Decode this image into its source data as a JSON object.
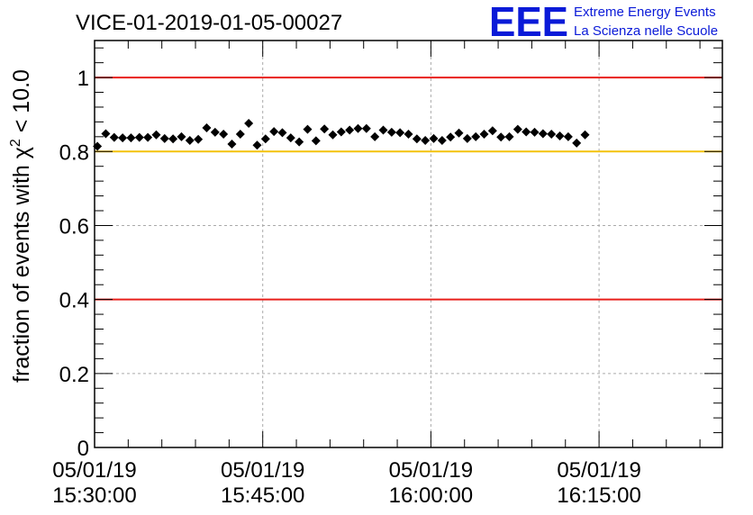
{
  "chart_data": {
    "type": "scatter",
    "title": "VICE-01-2019-01-05-00027",
    "ylabel": {
      "prefix": "fraction of events with ",
      "chi_symbol": "χ",
      "superscript": "2",
      "suffix": " < 10.0"
    },
    "xlabel": "",
    "ylim": [
      0,
      1.1
    ],
    "y_ticks": [
      {
        "value": 0,
        "label": "0"
      },
      {
        "value": 0.2,
        "label": "0.2"
      },
      {
        "value": 0.4,
        "label": "0.4"
      },
      {
        "value": 0.6,
        "label": "0.6"
      },
      {
        "value": 0.8,
        "label": "0.8"
      },
      {
        "value": 1,
        "label": "1"
      }
    ],
    "xlim_minutes": [
      0,
      56
    ],
    "x_ticks": [
      {
        "minute": 0,
        "date": "05/01/19",
        "time": "15:30:00"
      },
      {
        "minute": 15,
        "date": "05/01/19",
        "time": "15:45:00"
      },
      {
        "minute": 30,
        "date": "05/01/19",
        "time": "16:00:00"
      },
      {
        "minute": 45,
        "date": "05/01/19",
        "time": "16:15:00"
      }
    ],
    "reference_lines": [
      {
        "name": "upper-limit",
        "y": 1.0,
        "color": "#e8201c"
      },
      {
        "name": "warning-level",
        "y": 0.8,
        "color": "#f4c20d"
      },
      {
        "name": "lower-limit",
        "y": 0.4,
        "color": "#e8201c"
      }
    ],
    "series": [
      {
        "name": "fraction",
        "x_start_minute": 0.25,
        "x_step_minutes": 0.75,
        "values": [
          0.814,
          0.848,
          0.838,
          0.837,
          0.837,
          0.838,
          0.838,
          0.845,
          0.835,
          0.834,
          0.84,
          0.83,
          0.833,
          0.864,
          0.852,
          0.847,
          0.82,
          0.847,
          0.876,
          0.817,
          0.834,
          0.854,
          0.851,
          0.837,
          0.826,
          0.86,
          0.829,
          0.861,
          0.845,
          0.853,
          0.858,
          0.862,
          0.862,
          0.84,
          0.858,
          0.852,
          0.851,
          0.847,
          0.834,
          0.83,
          0.835,
          0.83,
          0.839,
          0.85,
          0.835,
          0.84,
          0.847,
          0.856,
          0.839,
          0.84,
          0.86,
          0.853,
          0.852,
          0.848,
          0.847,
          0.842,
          0.84,
          0.823,
          0.845
        ],
        "y_error": 0.008,
        "x_error_minutes": 0.3
      }
    ]
  },
  "logo": {
    "mark": "EEE",
    "line1": "Extreme Energy Events",
    "line2": "La Scienza nelle Scuole",
    "color": "#0a1ad8"
  },
  "colors": {
    "marker": "#000000",
    "grid": "#aaaaaa",
    "frame": "#000000"
  }
}
